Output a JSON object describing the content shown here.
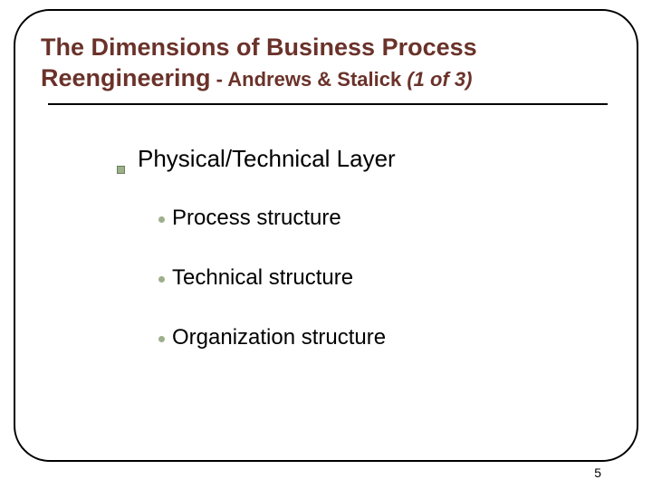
{
  "title": {
    "main": "The Dimensions of Business Process Reengineering",
    "sub": " - Andrews & Stalick ",
    "page_indicator": "(1 of 3)"
  },
  "level1_heading": "Physical/Technical Layer",
  "level2_items": [
    "Process structure",
    "Technical structure",
    "Organization structure"
  ],
  "page_number": "5",
  "colors": {
    "title_color": "#6a322a",
    "bullet_fill": "#9cb08b",
    "bullet_border": "#6d7f5d",
    "text_color": "#000000",
    "frame_color": "#000000",
    "background": "#ffffff"
  },
  "typography": {
    "title_main_size": 27,
    "title_sub_size": 22,
    "level1_size": 26,
    "level2_size": 24,
    "page_num_size": 14,
    "font_family": "Arial"
  },
  "layout": {
    "slide_width": 720,
    "slide_height": 540,
    "frame_radius": 40
  }
}
